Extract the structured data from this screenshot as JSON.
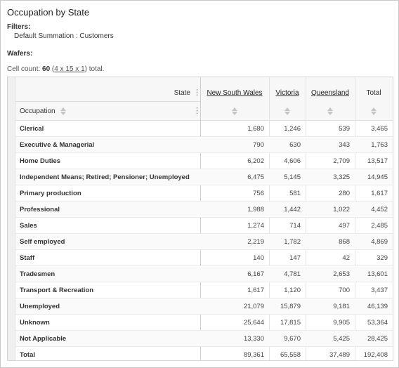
{
  "report": {
    "title": "Occupation by State",
    "filters_label": "Filters:",
    "filter_line": "Default Summation : Customers",
    "wafers_label": "Wafers:",
    "cell_count_prefix": "Cell count:",
    "cell_count_value": "60",
    "cell_count_dims": "4 x 15 x 1",
    "cell_count_suffix": "total."
  },
  "table": {
    "state_header": "State",
    "occupation_header": "Occupation",
    "columns": [
      {
        "label": "New South Wales",
        "link": true
      },
      {
        "label": "Victoria",
        "link": true
      },
      {
        "label": "Queensland",
        "link": true
      },
      {
        "label": "Total",
        "link": false
      }
    ],
    "rows": [
      {
        "label": "Clerical",
        "values": [
          "1,680",
          "1,246",
          "539",
          "3,465"
        ]
      },
      {
        "label": "Executive & Managerial",
        "values": [
          "790",
          "630",
          "343",
          "1,763"
        ]
      },
      {
        "label": "Home Duties",
        "values": [
          "6,202",
          "4,606",
          "2,709",
          "13,517"
        ]
      },
      {
        "label": "Independent Means; Retired; Pensioner; Unemployed",
        "values": [
          "6,475",
          "5,145",
          "3,325",
          "14,945"
        ]
      },
      {
        "label": "Primary production",
        "values": [
          "756",
          "581",
          "280",
          "1,617"
        ]
      },
      {
        "label": "Professional",
        "values": [
          "1,988",
          "1,442",
          "1,022",
          "4,452"
        ]
      },
      {
        "label": "Sales",
        "values": [
          "1,274",
          "714",
          "497",
          "2,485"
        ]
      },
      {
        "label": "Self employed",
        "values": [
          "2,219",
          "1,782",
          "868",
          "4,869"
        ]
      },
      {
        "label": "Staff",
        "values": [
          "140",
          "147",
          "42",
          "329"
        ]
      },
      {
        "label": "Tradesmen",
        "values": [
          "6,167",
          "4,781",
          "2,653",
          "13,601"
        ]
      },
      {
        "label": "Transport & Recreation",
        "values": [
          "1,617",
          "1,120",
          "700",
          "3,437"
        ]
      },
      {
        "label": "Unemployed",
        "values": [
          "21,079",
          "15,879",
          "9,181",
          "46,139"
        ]
      },
      {
        "label": "Unknown",
        "values": [
          "25,644",
          "17,815",
          "9,905",
          "53,364"
        ]
      },
      {
        "label": "Not Applicable",
        "values": [
          "13,330",
          "9,670",
          "5,425",
          "28,425"
        ]
      },
      {
        "label": "Total",
        "values": [
          "89,361",
          "65,558",
          "37,489",
          "192,408"
        ]
      }
    ]
  }
}
